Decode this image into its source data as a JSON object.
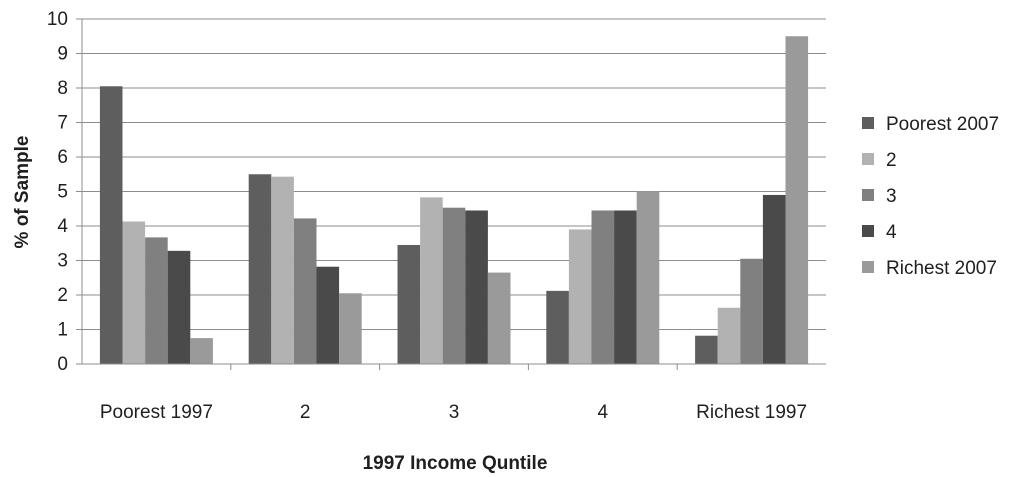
{
  "chart_data": {
    "type": "bar",
    "title": "",
    "xlabel": "1997 Income Quntile",
    "ylabel": "% of Sample",
    "ylim": [
      0,
      10
    ],
    "y_ticks": [
      "0",
      "1",
      "2",
      "3",
      "4",
      "5",
      "6",
      "7",
      "8",
      "9",
      "10"
    ],
    "grid": "horizontal",
    "legend_position": "right",
    "categories": [
      "Poorest 1997",
      "2",
      "3",
      "4",
      "Richest 1997"
    ],
    "series": [
      {
        "name": "Poorest 2007",
        "color": "#5e5e5e",
        "values": [
          8.05,
          5.5,
          3.45,
          2.12,
          0.82
        ]
      },
      {
        "name": "2",
        "color": "#b2b2b2",
        "values": [
          4.13,
          5.43,
          4.83,
          3.9,
          1.63
        ]
      },
      {
        "name": "3",
        "color": "#808080",
        "values": [
          3.67,
          4.22,
          4.53,
          4.45,
          3.05
        ]
      },
      {
        "name": "4",
        "color": "#4a4a4a",
        "values": [
          3.28,
          2.82,
          4.45,
          4.45,
          4.9
        ]
      },
      {
        "name": "Richest 2007",
        "color": "#9a9a9a",
        "values": [
          0.75,
          2.05,
          2.65,
          5.0,
          9.5
        ]
      }
    ]
  }
}
